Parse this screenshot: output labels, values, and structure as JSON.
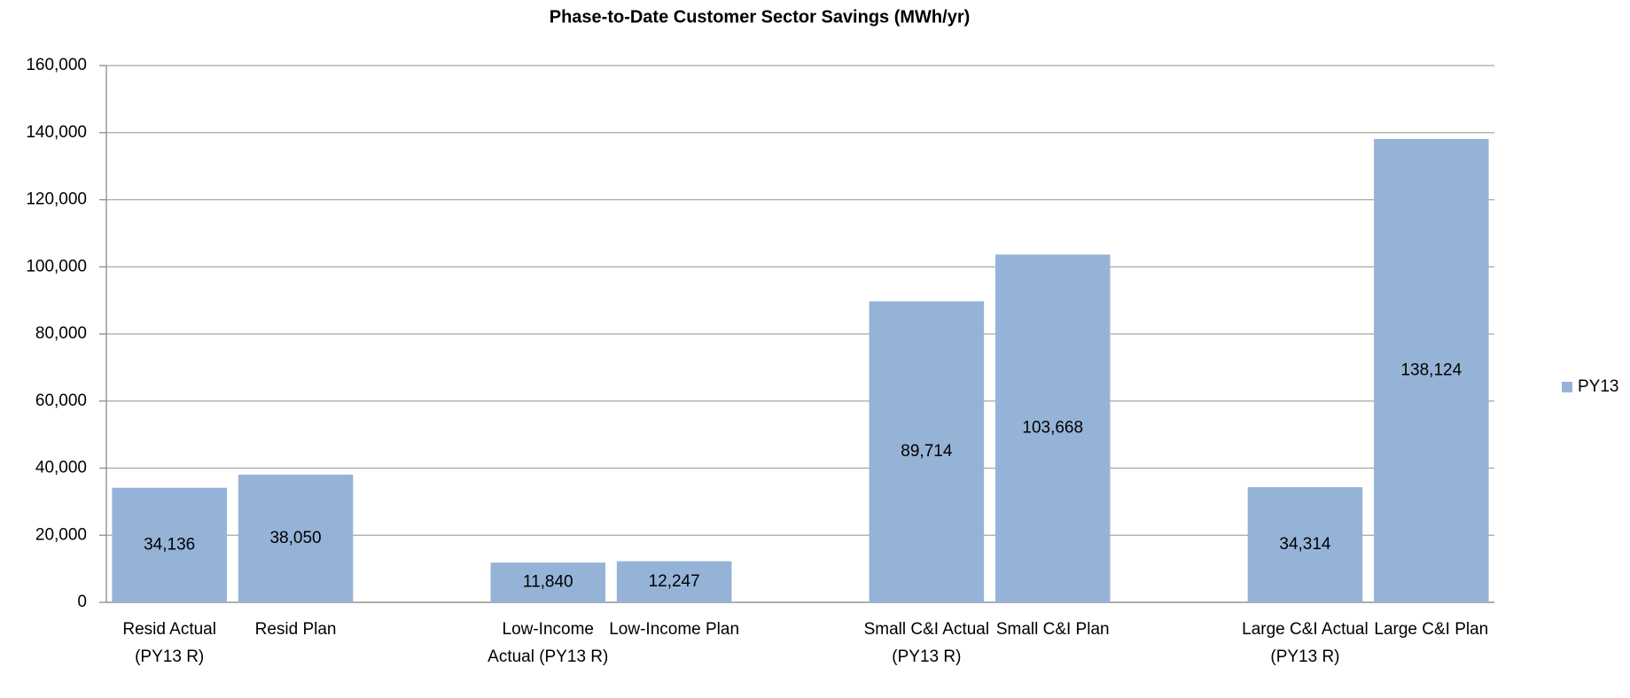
{
  "chart_data": {
    "type": "bar",
    "title": "Phase-to-Date Customer Sector Savings (MWh/yr)",
    "categories": [
      "Resid Actual (PY13 R)",
      "Resid Plan",
      null,
      "Low-Income Actual (PY13 R)",
      "Low-Income Plan",
      null,
      "Small C&I Actual (PY13 R)",
      "Small C&I Plan",
      null,
      "Large C&I Actual (PY13 R)",
      "Large C&I Plan"
    ],
    "series": [
      {
        "name": "PY13",
        "color": "#95b3d7",
        "values": [
          34136,
          38050,
          null,
          11840,
          12247,
          null,
          89714,
          103668,
          null,
          34314,
          138124
        ],
        "value_labels": [
          "34,136",
          "38,050",
          null,
          "11,840",
          "12,247",
          null,
          "89,714",
          "103,668",
          null,
          "34,314",
          "138,124"
        ]
      }
    ],
    "ylim": [
      0,
      160000
    ],
    "yticks": [
      0,
      {
        "value": 20000,
        "label": "20,000"
      },
      {
        "value": 40000,
        "label": "40,000"
      },
      {
        "value": 60000,
        "label": "60,000"
      },
      {
        "value": 80000,
        "label": "80,000"
      },
      {
        "value": 100000,
        "label": "100,000"
      },
      {
        "value": 120000,
        "label": "120,000"
      },
      {
        "value": 140000,
        "label": "140,000"
      },
      {
        "value": 160000,
        "label": "160,000"
      }
    ],
    "grid": true,
    "legend": "right"
  }
}
